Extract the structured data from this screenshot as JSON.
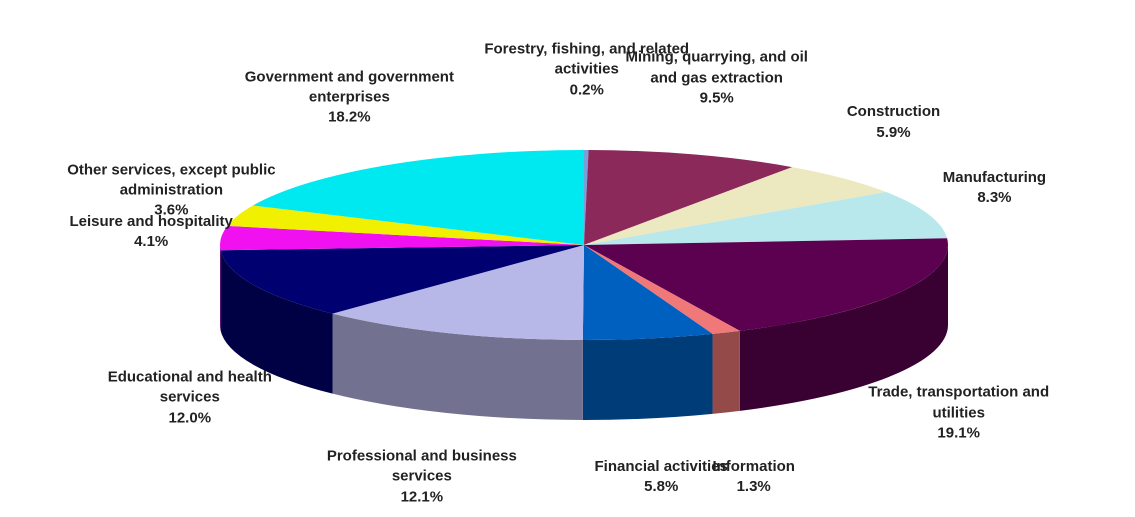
{
  "chart_data": {
    "type": "pie3d",
    "categories": [
      "Forestry, fishing, and related activities",
      "Mining, quarrying, and oil and gas extraction",
      "Construction",
      "Manufacturing",
      "Trade, transportation and utilities",
      "Information",
      "Financial activities",
      "Professional and business services",
      "Educational and health services",
      "Leisure and hospitality",
      "Other services, except public administration",
      "Government and government enterprises"
    ],
    "values": [
      0.2,
      9.5,
      5.9,
      8.3,
      19.1,
      1.3,
      5.8,
      12.1,
      12.0,
      4.1,
      3.6,
      18.2
    ],
    "value_labels": [
      "0.2%",
      "9.5%",
      "5.9%",
      "8.3%",
      "19.1%",
      "1.3%",
      "5.8%",
      "12.1%",
      "12.0%",
      "4.1%",
      "3.6%",
      "18.2%"
    ],
    "colors": [
      "#7a9fd8",
      "#8b2a5a",
      "#ece8c0",
      "#b8e8ec",
      "#5c0050",
      "#f07878",
      "#0060c0",
      "#b8b8e8",
      "#000070",
      "#f010f0",
      "#f0f000",
      "#00e8f0"
    ]
  }
}
